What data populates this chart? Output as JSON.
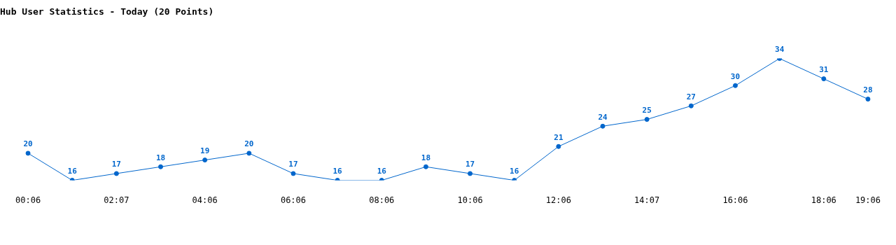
{
  "chart_data": {
    "type": "line",
    "title": "Hub User Statistics - Today (20 Points)",
    "categories": [
      "00:06",
      null,
      "02:07",
      null,
      "04:06",
      null,
      "06:06",
      null,
      "08:06",
      null,
      "10:06",
      null,
      "12:06",
      null,
      "14:07",
      null,
      "16:06",
      null,
      "18:06",
      "19:06"
    ],
    "series": [
      {
        "color": "#0066cc",
        "values": [
          20,
          16,
          17,
          18,
          19,
          20,
          17,
          16,
          16,
          18,
          17,
          16,
          21,
          24,
          25,
          27,
          30,
          34,
          31,
          28
        ]
      }
    ],
    "data_labels": true,
    "marker": "circle",
    "grid": false,
    "legend": false,
    "tick_labels": "x"
  }
}
